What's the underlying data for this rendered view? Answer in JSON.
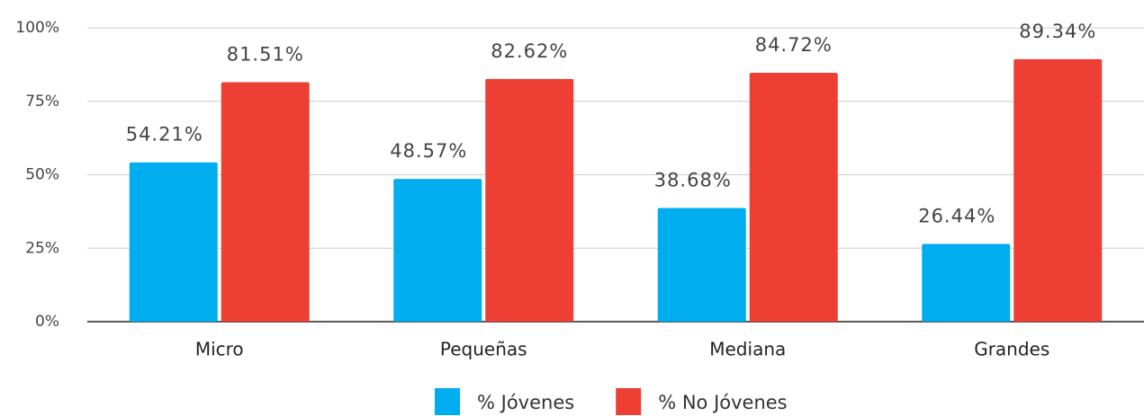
{
  "chart_data": {
    "type": "bar",
    "categories": [
      "Micro",
      "Pequeñas",
      "Mediana",
      "Grandes"
    ],
    "series": [
      {
        "name": "% Jóvenes",
        "color": "#00aeef",
        "values": [
          54.21,
          48.57,
          38.68,
          26.44
        ],
        "value_labels": [
          "54.21%",
          "48.57%",
          "38.68%",
          "26.44%"
        ]
      },
      {
        "name": "% No Jóvenes",
        "color": "#ee3f34",
        "values": [
          81.51,
          82.62,
          84.72,
          89.34
        ],
        "value_labels": [
          "81.51%",
          "82.62%",
          "84.72%",
          "89.34%"
        ]
      }
    ],
    "ylim": [
      0,
      100
    ],
    "yticks": [
      {
        "value": 0,
        "label": "0%"
      },
      {
        "value": 25,
        "label": "25%"
      },
      {
        "value": 50,
        "label": "50%"
      },
      {
        "value": 75,
        "label": "75%"
      },
      {
        "value": 100,
        "label": "100%"
      }
    ],
    "grid": true,
    "legend": "bottom"
  }
}
